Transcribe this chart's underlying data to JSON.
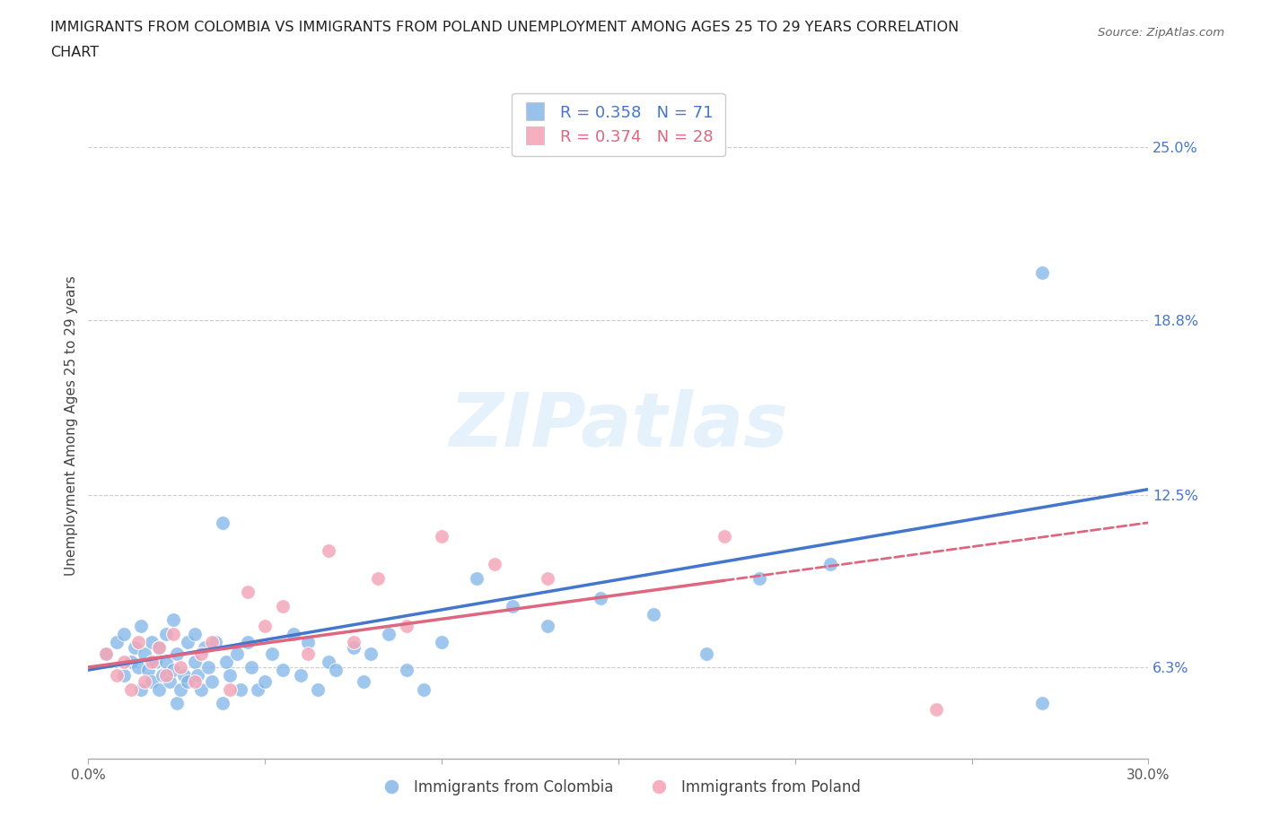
{
  "title_line1": "IMMIGRANTS FROM COLOMBIA VS IMMIGRANTS FROM POLAND UNEMPLOYMENT AMONG AGES 25 TO 29 YEARS CORRELATION",
  "title_line2": "CHART",
  "source": "Source: ZipAtlas.com",
  "ylabel": "Unemployment Among Ages 25 to 29 years",
  "xlim": [
    0.0,
    0.3
  ],
  "ylim": [
    0.03,
    0.27
  ],
  "ytick_values": [
    0.063,
    0.125,
    0.188,
    0.25
  ],
  "ytick_labels": [
    "6.3%",
    "12.5%",
    "18.8%",
    "25.0%"
  ],
  "colombia_color": "#7fb3e8",
  "poland_color": "#f4a7b9",
  "colombia_R": 0.358,
  "colombia_N": 71,
  "poland_R": 0.374,
  "poland_N": 28,
  "watermark": "ZIPatlas",
  "background_color": "#ffffff",
  "grid_color": "#cccccc",
  "colombia_line_x": [
    0.0,
    0.3
  ],
  "colombia_line_y": [
    0.062,
    0.127
  ],
  "poland_line_x": [
    0.0,
    0.3
  ],
  "poland_line_y": [
    0.063,
    0.115
  ],
  "colombia_scatter_x": [
    0.005,
    0.008,
    0.01,
    0.01,
    0.012,
    0.013,
    0.014,
    0.015,
    0.015,
    0.016,
    0.017,
    0.018,
    0.018,
    0.019,
    0.02,
    0.02,
    0.021,
    0.022,
    0.022,
    0.023,
    0.024,
    0.024,
    0.025,
    0.025,
    0.026,
    0.027,
    0.028,
    0.028,
    0.03,
    0.03,
    0.031,
    0.032,
    0.033,
    0.034,
    0.035,
    0.036,
    0.038,
    0.038,
    0.039,
    0.04,
    0.042,
    0.043,
    0.045,
    0.046,
    0.048,
    0.05,
    0.052,
    0.055,
    0.058,
    0.06,
    0.062,
    0.065,
    0.068,
    0.07,
    0.075,
    0.078,
    0.08,
    0.085,
    0.09,
    0.095,
    0.1,
    0.11,
    0.12,
    0.13,
    0.145,
    0.16,
    0.175,
    0.19,
    0.21,
    0.27,
    0.27
  ],
  "colombia_scatter_y": [
    0.068,
    0.072,
    0.06,
    0.075,
    0.065,
    0.07,
    0.063,
    0.055,
    0.078,
    0.068,
    0.062,
    0.058,
    0.072,
    0.065,
    0.055,
    0.07,
    0.06,
    0.065,
    0.075,
    0.058,
    0.062,
    0.08,
    0.05,
    0.068,
    0.055,
    0.06,
    0.072,
    0.058,
    0.065,
    0.075,
    0.06,
    0.055,
    0.07,
    0.063,
    0.058,
    0.072,
    0.05,
    0.115,
    0.065,
    0.06,
    0.068,
    0.055,
    0.072,
    0.063,
    0.055,
    0.058,
    0.068,
    0.062,
    0.075,
    0.06,
    0.072,
    0.055,
    0.065,
    0.062,
    0.07,
    0.058,
    0.068,
    0.075,
    0.062,
    0.055,
    0.072,
    0.095,
    0.085,
    0.078,
    0.088,
    0.082,
    0.068,
    0.095,
    0.1,
    0.05,
    0.205
  ],
  "poland_scatter_x": [
    0.005,
    0.008,
    0.01,
    0.012,
    0.014,
    0.016,
    0.018,
    0.02,
    0.022,
    0.024,
    0.026,
    0.03,
    0.032,
    0.035,
    0.04,
    0.045,
    0.05,
    0.055,
    0.062,
    0.068,
    0.075,
    0.082,
    0.09,
    0.1,
    0.115,
    0.13,
    0.18,
    0.24
  ],
  "poland_scatter_y": [
    0.068,
    0.06,
    0.065,
    0.055,
    0.072,
    0.058,
    0.065,
    0.07,
    0.06,
    0.075,
    0.063,
    0.058,
    0.068,
    0.072,
    0.055,
    0.09,
    0.078,
    0.085,
    0.068,
    0.105,
    0.072,
    0.095,
    0.078,
    0.11,
    0.1,
    0.095,
    0.11,
    0.048
  ]
}
